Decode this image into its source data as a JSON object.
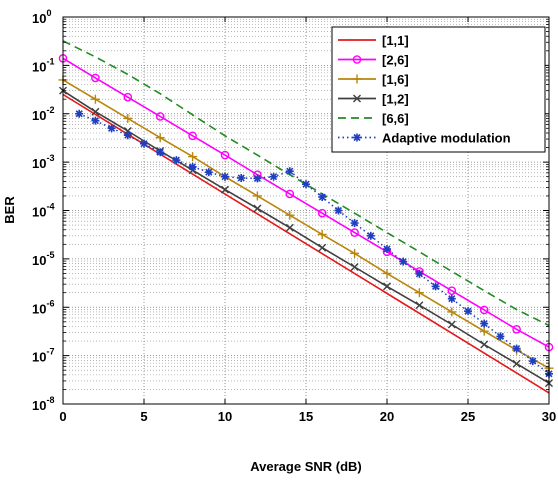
{
  "chart_data": {
    "type": "line",
    "xlabel": "Average SNR (dB)",
    "ylabel": "BER",
    "xlim": [
      0,
      30
    ],
    "ylim": [
      1e-08,
      1
    ],
    "yscale": "log",
    "grid": true,
    "legend_position": "top-right",
    "x_ticks": [
      "0",
      "5",
      "10",
      "15",
      "20",
      "25",
      "30"
    ],
    "y_ticks": [
      {
        "base": "10",
        "exp": "-8",
        "value": 1e-08
      },
      {
        "base": "10",
        "exp": "-7",
        "value": 1e-07
      },
      {
        "base": "10",
        "exp": "-6",
        "value": 1e-06
      },
      {
        "base": "10",
        "exp": "-5",
        "value": 1e-05
      },
      {
        "base": "10",
        "exp": "-4",
        "value": 0.0001
      },
      {
        "base": "10",
        "exp": "-3",
        "value": 0.001
      },
      {
        "base": "10",
        "exp": "-2",
        "value": 0.01
      },
      {
        "base": "10",
        "exp": "-1",
        "value": 0.1
      },
      {
        "base": "10",
        "exp": "0",
        "value": 1
      }
    ],
    "series": [
      {
        "name": "[1,1]",
        "color": "#e41a1c",
        "dash": "solid",
        "marker": "none",
        "x": [
          0,
          30
        ],
        "y": [
          0.025,
          1.7e-08
        ]
      },
      {
        "name": "[2,6]",
        "color": "#ff00ff",
        "dash": "solid",
        "marker": "circle",
        "x": [
          0,
          2,
          4,
          6,
          8,
          10,
          12,
          14,
          16,
          18,
          20,
          22,
          24,
          26,
          28,
          30
        ],
        "y": [
          0.14,
          0.055,
          0.022,
          0.0088,
          0.0035,
          0.0014,
          0.00055,
          0.00022,
          8.8e-05,
          3.5e-05,
          1.4e-05,
          5.5e-06,
          2.2e-06,
          8.8e-07,
          3.5e-07,
          1.5e-07
        ]
      },
      {
        "name": "[1,6]",
        "color": "#b8860b",
        "dash": "solid",
        "marker": "plus",
        "x": [
          0,
          2,
          4,
          6,
          8,
          10,
          12,
          14,
          16,
          18,
          20,
          22,
          24,
          26,
          28,
          30
        ],
        "y": [
          0.05,
          0.02,
          0.008,
          0.0032,
          0.0013,
          0.0005,
          0.0002,
          8e-05,
          3.2e-05,
          1.3e-05,
          5e-06,
          2e-06,
          8e-07,
          3.2e-07,
          1.3e-07,
          5.5e-08
        ]
      },
      {
        "name": "[1,2]",
        "color": "#404040",
        "dash": "solid",
        "marker": "x",
        "x": [
          0,
          2,
          4,
          6,
          8,
          10,
          12,
          14,
          16,
          18,
          20,
          22,
          24,
          26,
          28,
          30
        ],
        "y": [
          0.03,
          0.011,
          0.0044,
          0.0017,
          0.00068,
          0.00027,
          0.00011,
          4.4e-05,
          1.7e-05,
          6.8e-06,
          2.7e-06,
          1.1e-06,
          4.4e-07,
          1.7e-07,
          6.8e-08,
          2.7e-08
        ]
      },
      {
        "name": "[6,6]",
        "color": "#228b22",
        "dash": "dashed",
        "marker": "none",
        "x": [
          0,
          2,
          4,
          6,
          8,
          10,
          12,
          14,
          16,
          18,
          20,
          22,
          24,
          26,
          28,
          30
        ],
        "y": [
          0.32,
          0.15,
          0.065,
          0.026,
          0.0095,
          0.0035,
          0.0014,
          0.00055,
          0.00022,
          8.8e-05,
          3.5e-05,
          1.4e-05,
          5.5e-06,
          2.2e-06,
          9e-07,
          4.2e-07
        ]
      },
      {
        "name": "Adaptive modulation",
        "color": "#1f3fbf",
        "dash": "dotted",
        "marker": "star",
        "x": [
          1,
          2,
          3,
          4,
          5,
          6,
          7,
          8,
          9,
          10,
          11,
          12,
          13,
          14,
          15,
          16,
          17,
          18,
          19,
          20,
          21,
          22,
          23,
          24,
          25,
          26,
          27,
          28,
          29,
          30
        ],
        "y": [
          0.01,
          0.0072,
          0.005,
          0.0036,
          0.0024,
          0.0016,
          0.0011,
          0.0008,
          0.00062,
          0.0005,
          0.00047,
          0.00046,
          0.0005,
          0.00065,
          0.00035,
          0.00019,
          0.0001,
          5.5e-05,
          3e-05,
          1.6e-05,
          8.8e-06,
          4.9e-06,
          2.7e-06,
          1.5e-06,
          8.3e-07,
          4.6e-07,
          2.5e-07,
          1.4e-07,
          7.7e-08,
          4.2e-08
        ]
      }
    ]
  }
}
